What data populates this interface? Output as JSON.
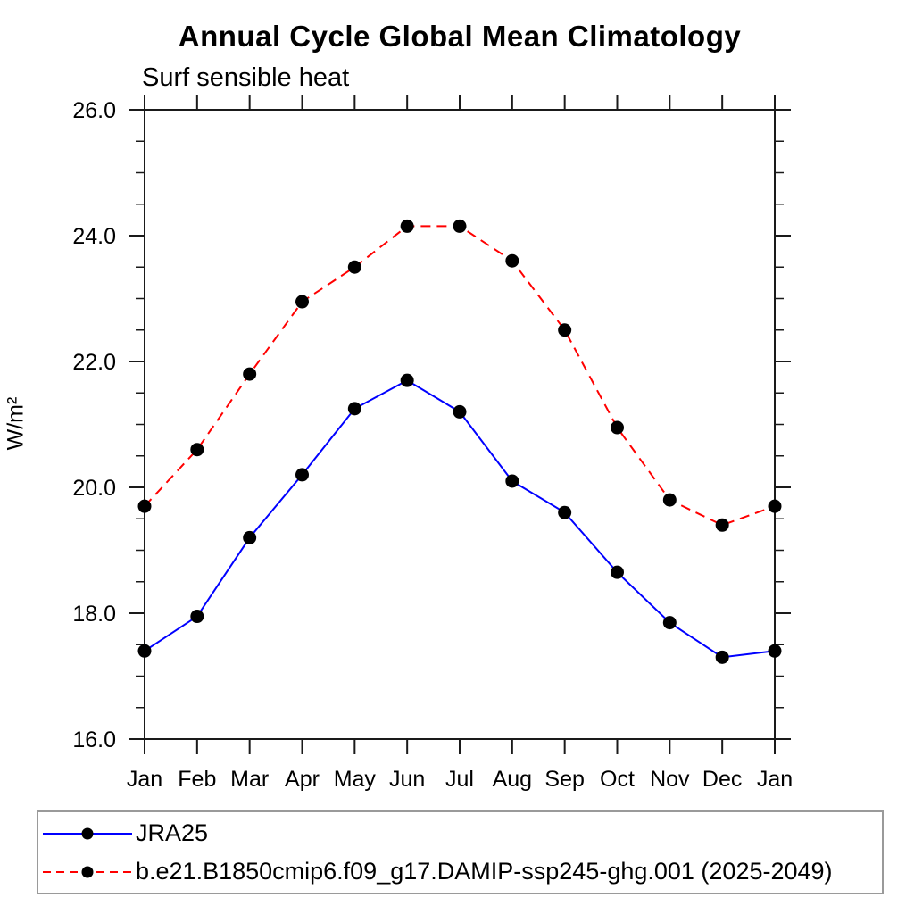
{
  "figure": {
    "title": "Annual Cycle Global Mean Climatology",
    "subtitle": "Surf sensible heat"
  },
  "chart_data": {
    "type": "line",
    "x_labels": [
      "Jan",
      "Feb",
      "Mar",
      "Apr",
      "May",
      "Jun",
      "Jul",
      "Aug",
      "Sep",
      "Oct",
      "Nov",
      "Dec",
      "Jan"
    ],
    "xlabel": "",
    "ylabel": "W/m²",
    "ylim": [
      16.0,
      26.0
    ],
    "y_major_ticks": [
      16.0,
      18.0,
      20.0,
      22.0,
      24.0,
      26.0
    ],
    "y_tick_labels": [
      "16.0",
      "18.0",
      "20.0",
      "22.0",
      "24.0",
      "26.0"
    ],
    "y_minor_step": 0.5,
    "grid": false,
    "frame": "box-with-outward-ticks",
    "marker": "filled-circle",
    "marker_color": "#000000",
    "axis_color": "#1a1a1a",
    "legend_position": "bottom-left-box",
    "series": [
      {
        "name": "JRA25",
        "color": "#0000ff",
        "line_style": "solid",
        "values": [
          17.4,
          17.95,
          19.2,
          20.2,
          21.25,
          21.7,
          21.2,
          20.1,
          19.6,
          18.65,
          17.85,
          17.3,
          17.4
        ]
      },
      {
        "name": "b.e21.B1850cmip6.f09_g17.DAMIP-ssp245-ghg.001 (2025-2049)",
        "color": "#ff0000",
        "line_style": "dashed",
        "values": [
          19.7,
          20.6,
          21.8,
          22.95,
          23.5,
          24.15,
          24.15,
          23.6,
          22.5,
          20.95,
          19.8,
          19.4,
          19.7
        ]
      }
    ]
  }
}
